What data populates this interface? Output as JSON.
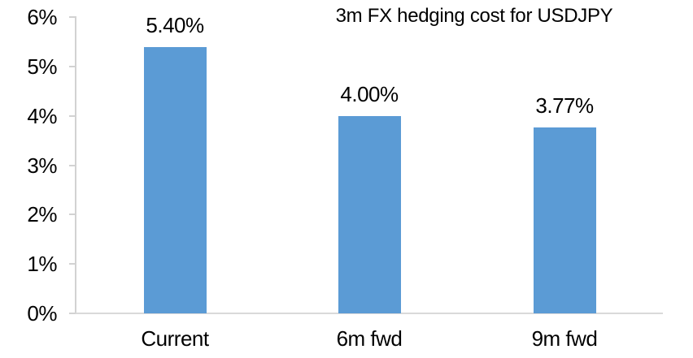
{
  "chart_data": {
    "type": "bar",
    "title": "3m FX hedging cost for USDJPY",
    "categories": [
      "Current",
      "6m fwd",
      "9m fwd"
    ],
    "values": [
      5.4,
      4.0,
      3.77
    ],
    "data_labels": [
      "5.40%",
      "4.00%",
      "3.77%"
    ],
    "y_ticks": [
      "0%",
      "1%",
      "2%",
      "3%",
      "4%",
      "5%",
      "6%"
    ],
    "ylim": [
      0,
      6
    ],
    "xlabel": "",
    "ylabel": "",
    "gridlines": false,
    "legend": false,
    "bar_color": "#5b9bd5",
    "axis_color": "#d2d2d2",
    "text_color": "#000000"
  }
}
